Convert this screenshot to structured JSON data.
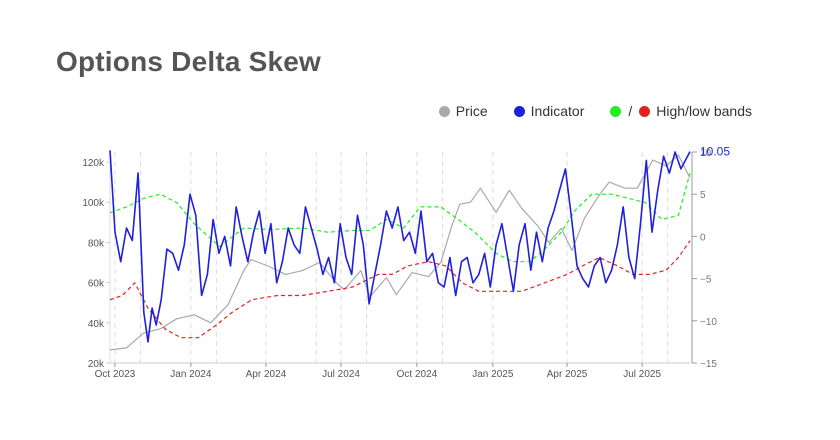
{
  "title": "Options Delta Skew",
  "legend": {
    "price": "Price",
    "indicator": "Indicator",
    "bands_sep": "/",
    "bands": "High/low bands"
  },
  "colors": {
    "price": "#a9a9a9",
    "indicator": "#1f1fe0",
    "high_band": "#22ee22",
    "low_band": "#e02222",
    "indicator_label": "#1f2be0"
  },
  "chart_data": {
    "type": "line",
    "x_ticks": [
      "Oct 2023",
      "Jan 2024",
      "Apr 2024",
      "Jul 2024",
      "Oct 2024",
      "Jan 2025",
      "Apr 2025",
      "Jul 2025"
    ],
    "x_range": [
      "2023-09-25",
      "2025-08-28"
    ],
    "left_axis": {
      "ticks": [
        "20k",
        "40k",
        "60k",
        "80k",
        "100k",
        "120k"
      ],
      "range": [
        20000,
        125000
      ]
    },
    "right_axis": {
      "ticks": [
        "−15",
        "−10",
        "−5",
        "0",
        "5",
        "10"
      ],
      "range": [
        -15,
        10
      ]
    },
    "last_indicator_value": "10.05",
    "grid": "vertical dashed at month ticks",
    "legend_position": "top-right",
    "series": [
      {
        "name": "Price",
        "axis": "left",
        "x": [
          "2023-09-25",
          "2023-10-15",
          "2023-11-05",
          "2023-11-25",
          "2023-12-15",
          "2024-01-05",
          "2024-01-25",
          "2024-02-15",
          "2024-03-05",
          "2024-03-14",
          "2024-04-05",
          "2024-04-25",
          "2024-05-15",
          "2024-06-05",
          "2024-06-25",
          "2024-07-05",
          "2024-07-25",
          "2024-08-05",
          "2024-08-25",
          "2024-09-06",
          "2024-09-25",
          "2024-10-15",
          "2024-10-30",
          "2024-11-12",
          "2024-11-22",
          "2024-12-05",
          "2024-12-17",
          "2025-01-05",
          "2025-01-21",
          "2025-02-05",
          "2025-02-25",
          "2025-03-10",
          "2025-03-25",
          "2025-04-07",
          "2025-04-22",
          "2025-05-10",
          "2025-05-22",
          "2025-06-10",
          "2025-06-25",
          "2025-07-14",
          "2025-07-30",
          "2025-08-14",
          "2025-08-28"
        ],
        "y": [
          26500,
          27500,
          35000,
          37000,
          42000,
          44000,
          40000,
          49000,
          66000,
          71500,
          68000,
          64000,
          66000,
          70000,
          60000,
          56500,
          66000,
          53000,
          62500,
          54000,
          65000,
          63000,
          70000,
          88000,
          99000,
          100000,
          107000,
          95000,
          106000,
          97000,
          88000,
          80000,
          87000,
          76000,
          92000,
          103500,
          110000,
          107000,
          107000,
          121000,
          118000,
          123500,
          112000
        ]
      },
      {
        "name": "Indicator",
        "axis": "right",
        "x": [
          "2023-09-25",
          "2023-10-01",
          "2023-10-08",
          "2023-10-15",
          "2023-10-22",
          "2023-10-29",
          "2023-11-05",
          "2023-11-10",
          "2023-11-15",
          "2023-11-20",
          "2023-11-26",
          "2023-12-03",
          "2023-12-10",
          "2023-12-17",
          "2023-12-24",
          "2023-12-31",
          "2024-01-07",
          "2024-01-14",
          "2024-01-21",
          "2024-01-28",
          "2024-02-04",
          "2024-02-11",
          "2024-02-18",
          "2024-02-25",
          "2024-03-03",
          "2024-03-10",
          "2024-03-17",
          "2024-03-24",
          "2024-03-31",
          "2024-04-07",
          "2024-04-14",
          "2024-04-21",
          "2024-04-28",
          "2024-05-05",
          "2024-05-12",
          "2024-05-19",
          "2024-05-26",
          "2024-06-02",
          "2024-06-09",
          "2024-06-16",
          "2024-06-23",
          "2024-06-30",
          "2024-07-07",
          "2024-07-14",
          "2024-07-21",
          "2024-07-28",
          "2024-08-04",
          "2024-08-11",
          "2024-08-18",
          "2024-08-25",
          "2024-09-01",
          "2024-09-08",
          "2024-09-15",
          "2024-09-22",
          "2024-09-29",
          "2024-10-06",
          "2024-10-13",
          "2024-10-20",
          "2024-10-27",
          "2024-11-03",
          "2024-11-10",
          "2024-11-17",
          "2024-11-24",
          "2024-12-01",
          "2024-12-08",
          "2024-12-15",
          "2024-12-22",
          "2024-12-29",
          "2025-01-05",
          "2025-01-12",
          "2025-01-19",
          "2025-01-26",
          "2025-02-02",
          "2025-02-09",
          "2025-02-16",
          "2025-02-23",
          "2025-03-02",
          "2025-03-09",
          "2025-03-16",
          "2025-03-23",
          "2025-03-30",
          "2025-04-06",
          "2025-04-13",
          "2025-04-20",
          "2025-04-27",
          "2025-05-04",
          "2025-05-11",
          "2025-05-18",
          "2025-05-25",
          "2025-06-01",
          "2025-06-08",
          "2025-06-15",
          "2025-06-22",
          "2025-06-29",
          "2025-07-06",
          "2025-07-13",
          "2025-07-20",
          "2025-07-27",
          "2025-08-03",
          "2025-08-10",
          "2025-08-17",
          "2025-08-28"
        ],
        "y": [
          10.2,
          0.5,
          -3.0,
          1.0,
          -0.5,
          7.5,
          -9.0,
          -12.5,
          -8.5,
          -10.5,
          -7.5,
          -1.5,
          -2.0,
          -4.0,
          -1.0,
          5.0,
          2.5,
          -7.0,
          -4.5,
          2.0,
          -2.0,
          0.0,
          -3.5,
          3.5,
          0.0,
          -3.0,
          0.5,
          3.0,
          -2.0,
          1.5,
          -5.5,
          -3.0,
          1.0,
          -1.0,
          -2.0,
          3.5,
          1.0,
          -1.5,
          -4.5,
          -2.5,
          -5.5,
          1.5,
          -2.5,
          -4.5,
          2.5,
          -1.0,
          -8.0,
          -4.5,
          -1.0,
          3.0,
          1.0,
          3.5,
          -0.5,
          0.5,
          -2.0,
          3.0,
          -3.0,
          -2.0,
          -5.5,
          -6.0,
          -2.5,
          -7.0,
          -3.0,
          -2.5,
          -5.5,
          -4.5,
          -2.0,
          -6.0,
          -1.0,
          1.5,
          -2.5,
          -6.5,
          -1.0,
          1.5,
          -4.0,
          0.5,
          -3.0,
          1.0,
          3.0,
          5.5,
          8.0,
          2.5,
          -3.5,
          -5.0,
          -6.0,
          -3.5,
          -2.5,
          -5.5,
          -4.0,
          -1.0,
          3.5,
          -2.5,
          -5.0,
          1.5,
          9.0,
          0.5,
          5.5,
          9.5,
          7.5,
          10.0,
          8.0,
          10.05
        ]
      },
      {
        "name": "High band",
        "axis": "right",
        "x": [
          "2023-09-25",
          "2023-10-15",
          "2023-11-05",
          "2023-11-25",
          "2023-12-15",
          "2024-01-05",
          "2024-01-20",
          "2024-02-05",
          "2024-03-05",
          "2024-04-05",
          "2024-05-15",
          "2024-06-15",
          "2024-07-15",
          "2024-08-05",
          "2024-08-25",
          "2024-09-15",
          "2024-10-05",
          "2024-10-30",
          "2024-11-20",
          "2024-12-10",
          "2025-01-05",
          "2025-01-25",
          "2025-02-15",
          "2025-03-05",
          "2025-03-25",
          "2025-04-10",
          "2025-05-01",
          "2025-05-25",
          "2025-06-15",
          "2025-07-05",
          "2025-07-25",
          "2025-08-14",
          "2025-08-28"
        ],
        "y": [
          2.8,
          3.5,
          4.5,
          5.0,
          4.0,
          1.5,
          0.2,
          -1.2,
          1.0,
          0.8,
          1.0,
          0.5,
          0.7,
          0.7,
          2.0,
          1.0,
          3.5,
          3.5,
          2.0,
          0.5,
          -2.0,
          -3.0,
          -3.0,
          -1.5,
          0.5,
          3.0,
          5.0,
          5.0,
          4.5,
          4.0,
          2.0,
          2.5,
          7.5
        ]
      },
      {
        "name": "Low band",
        "axis": "right",
        "x": [
          "2023-09-25",
          "2023-10-10",
          "2023-10-25",
          "2023-11-10",
          "2023-12-01",
          "2023-12-20",
          "2024-01-10",
          "2024-02-01",
          "2024-02-20",
          "2024-03-15",
          "2024-04-15",
          "2024-05-15",
          "2024-06-15",
          "2024-07-15",
          "2024-08-15",
          "2024-09-01",
          "2024-09-20",
          "2024-10-15",
          "2024-11-05",
          "2024-11-25",
          "2024-12-15",
          "2025-01-05",
          "2025-02-05",
          "2025-03-05",
          "2025-04-01",
          "2025-04-20",
          "2025-05-10",
          "2025-06-01",
          "2025-06-20",
          "2025-07-10",
          "2025-07-30",
          "2025-08-14",
          "2025-08-28"
        ],
        "y": [
          -7.5,
          -7.0,
          -5.5,
          -8.5,
          -11.0,
          -12.0,
          -12.0,
          -10.5,
          -9.0,
          -7.5,
          -7.0,
          -7.0,
          -6.5,
          -6.0,
          -4.5,
          -4.5,
          -3.5,
          -3.0,
          -3.5,
          -5.5,
          -6.5,
          -6.5,
          -6.5,
          -5.5,
          -4.5,
          -3.5,
          -2.5,
          -3.5,
          -4.5,
          -4.5,
          -4.0,
          -2.5,
          -0.5
        ]
      }
    ]
  }
}
